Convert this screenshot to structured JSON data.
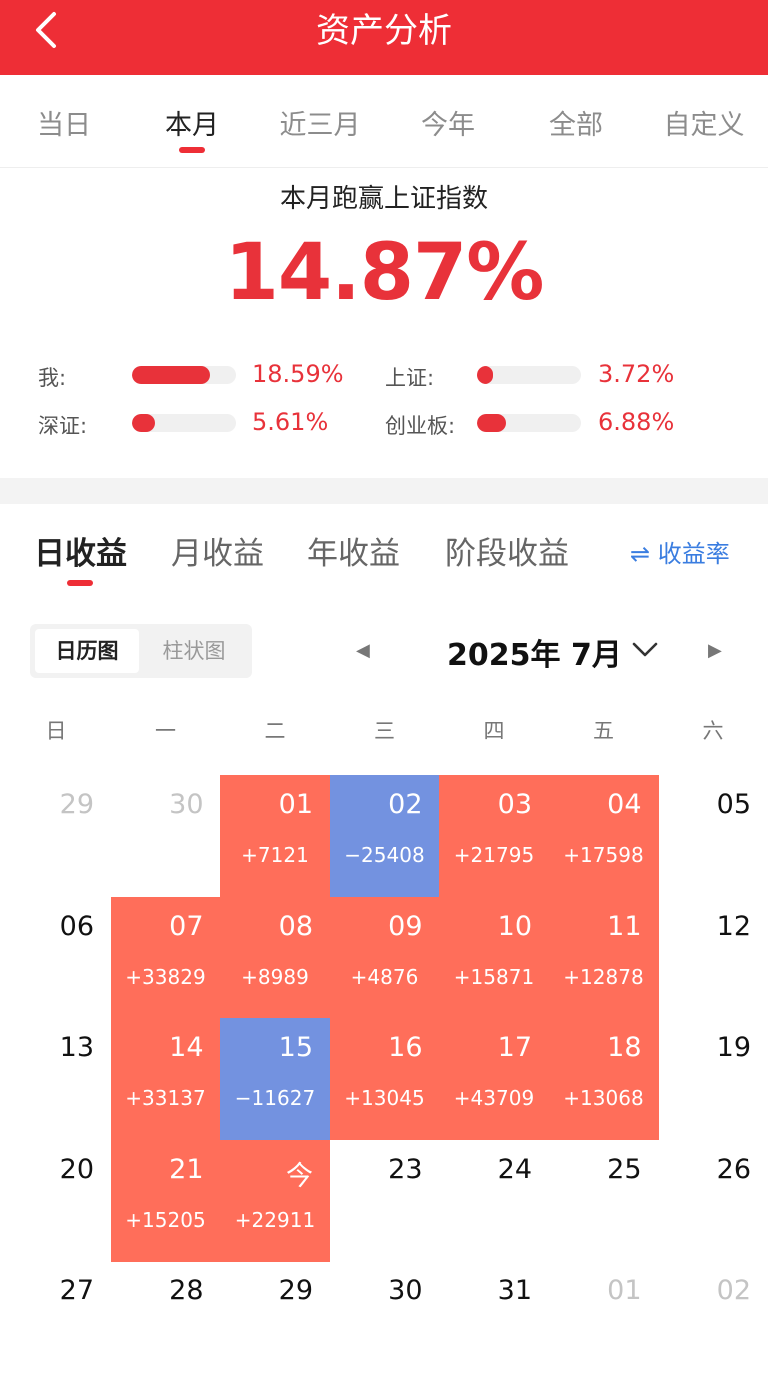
{
  "header": {
    "title": "资产分析"
  },
  "tabs": [
    "当日",
    "本月",
    "近三月",
    "今年",
    "全部",
    "自定义"
  ],
  "summary": {
    "title": "本月跑赢上证指数",
    "value": "14.87%"
  },
  "compare": [
    {
      "label": "我:",
      "pct": "18.59%",
      "fill": 0.75
    },
    {
      "label": "上证:",
      "pct": "3.72%",
      "fill": 0.15
    },
    {
      "label": "深证:",
      "pct": "5.61%",
      "fill": 0.22
    },
    {
      "label": "创业板:",
      "pct": "6.88%",
      "fill": 0.28
    }
  ],
  "subtabs": [
    "日收益",
    "月收益",
    "年收益",
    "阶段收益"
  ],
  "rate_link": "⇌ 收益率",
  "view_toggle": {
    "calendar": "日历图",
    "bar": "柱状图"
  },
  "month_label": "2025年 7月",
  "weekdays": [
    "日",
    "一",
    "二",
    "三",
    "四",
    "五",
    "六"
  ],
  "calendar": [
    [
      {
        "d": "29",
        "m": 1
      },
      {
        "d": "30",
        "m": 1
      },
      {
        "d": "01",
        "v": "+7121",
        "t": "pos"
      },
      {
        "d": "02",
        "v": "−25408",
        "t": "neg"
      },
      {
        "d": "03",
        "v": "+21795",
        "t": "pos"
      },
      {
        "d": "04",
        "v": "+17598",
        "t": "pos"
      },
      {
        "d": "05"
      }
    ],
    [
      {
        "d": "06"
      },
      {
        "d": "07",
        "v": "+33829",
        "t": "pos"
      },
      {
        "d": "08",
        "v": "+8989",
        "t": "pos"
      },
      {
        "d": "09",
        "v": "+4876",
        "t": "pos"
      },
      {
        "d": "10",
        "v": "+15871",
        "t": "pos"
      },
      {
        "d": "11",
        "v": "+12878",
        "t": "pos"
      },
      {
        "d": "12"
      }
    ],
    [
      {
        "d": "13"
      },
      {
        "d": "14",
        "v": "+33137",
        "t": "pos"
      },
      {
        "d": "15",
        "v": "−11627",
        "t": "neg"
      },
      {
        "d": "16",
        "v": "+13045",
        "t": "pos"
      },
      {
        "d": "17",
        "v": "+43709",
        "t": "pos"
      },
      {
        "d": "18",
        "v": "+13068",
        "t": "pos"
      },
      {
        "d": "19"
      }
    ],
    [
      {
        "d": "20"
      },
      {
        "d": "21",
        "v": "+15205",
        "t": "pos"
      },
      {
        "d": "今",
        "v": "+22911",
        "t": "pos"
      },
      {
        "d": "23"
      },
      {
        "d": "24"
      },
      {
        "d": "25"
      },
      {
        "d": "26"
      }
    ],
    [
      {
        "d": "27"
      },
      {
        "d": "28"
      },
      {
        "d": "29"
      },
      {
        "d": "30"
      },
      {
        "d": "31"
      },
      {
        "d": "01",
        "m": 1
      },
      {
        "d": "02",
        "m": 1
      }
    ]
  ]
}
